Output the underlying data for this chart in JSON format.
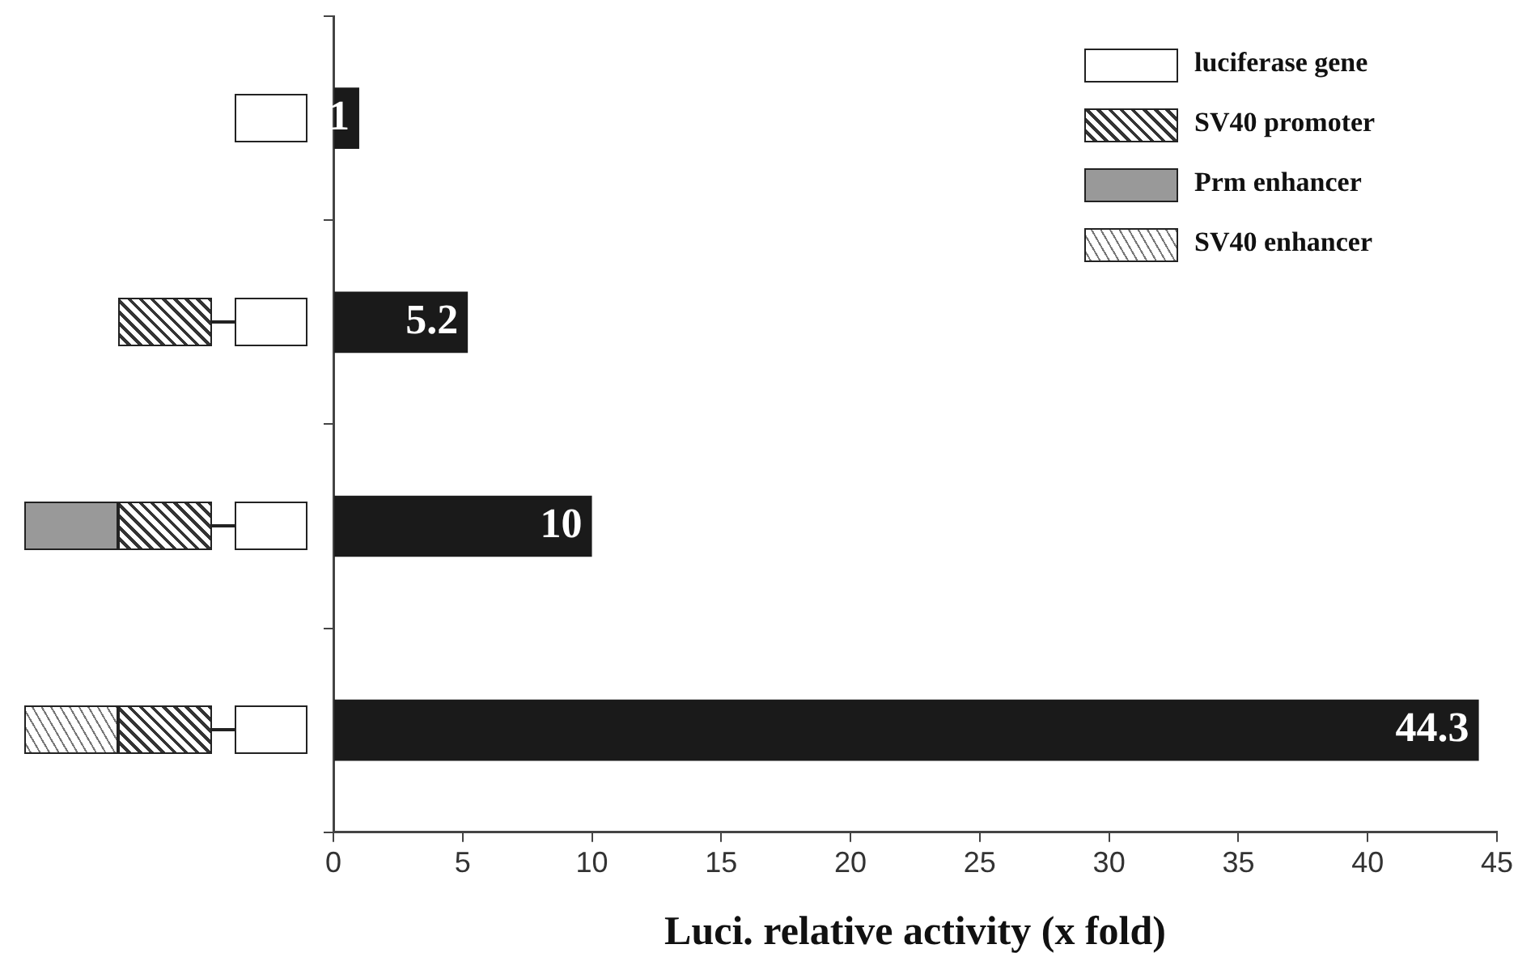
{
  "chart_data": {
    "type": "bar",
    "orientation": "horizontal",
    "categories": [
      null,
      null,
      null,
      null
    ],
    "values": [
      1,
      5.2,
      10,
      44.3
    ],
    "color": "#1a1a1a",
    "data_labels": true,
    "xlim": [
      0,
      45
    ],
    "xticks": [
      0,
      5,
      10,
      15,
      20,
      25,
      30,
      35,
      40,
      45
    ],
    "grid": false,
    "xlabel": "Luci. relative activity (x fold)",
    "annotations": [
      "luciferase gene",
      "SV40 promoter",
      "Prm enhancer",
      "SV40 enhancer"
    ]
  }
}
